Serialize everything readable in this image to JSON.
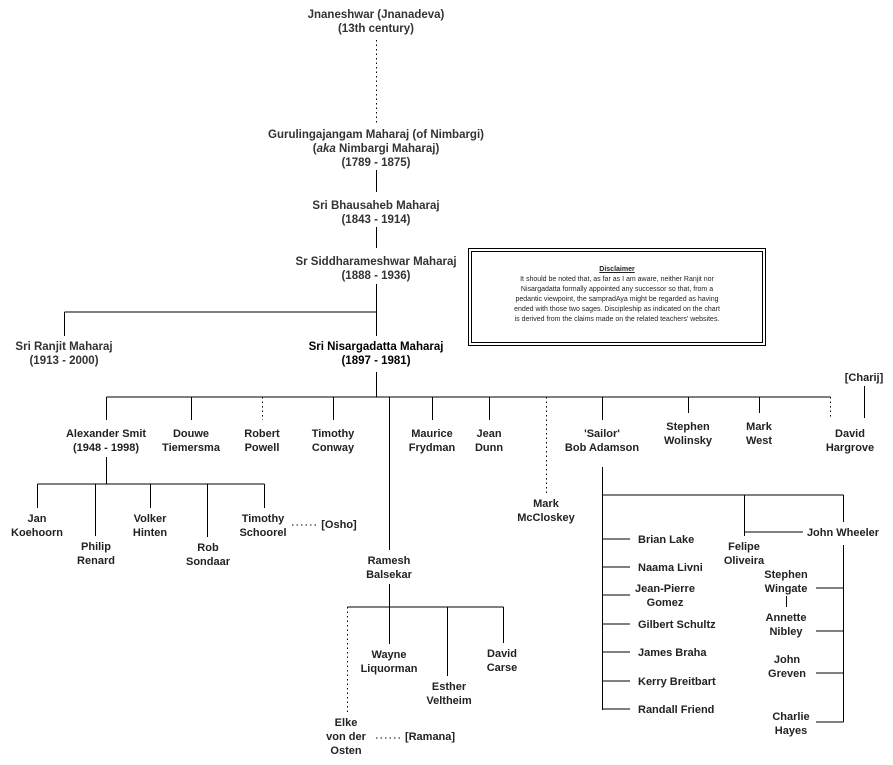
{
  "lineage": {
    "jnaneshwar": [
      "Jnaneshwar (Jnanadeva)",
      "(13th century)"
    ],
    "gurulingajangam": {
      "line1": "Gurulingajangam Maharaj (of Nimbargi)",
      "aka_em": "aka",
      "aka_rest": " Nimbargi Maharaj)",
      "aka_open": "(",
      "dates": "(1789 - 1875)"
    },
    "bhausaheb": [
      "Sri Bhausaheb Maharaj",
      "(1843 - 1914)"
    ],
    "siddharameshwar": [
      "Sr Siddharameshwar Maharaj",
      "(1888 - 1936)"
    ],
    "ranjit": [
      "Sri Ranjit Maharaj",
      "(1913 - 2000)"
    ],
    "nisargadatta": [
      "Sri Nisargadatta Maharaj",
      "(1897 - 1981)"
    ]
  },
  "disclaimer": {
    "title": "Disclaimer",
    "lines": [
      "It should be noted that, as far as I am aware, neither Ranjit nor",
      "Nisargadatta formally appointed any successor so that, from a",
      "pedantic viewpoint, the sampradAya might be regarded as having",
      "ended with those two sages. Discipleship as indicated on the chart",
      "is derived from the claims made on the related teachers' websites."
    ]
  },
  "nisargadatta_disciples": {
    "smit": [
      "Alexander Smit",
      "(1948 - 1998)"
    ],
    "tiemersma": [
      "Douwe",
      "Tiemersma"
    ],
    "powell": [
      "Robert",
      "Powell"
    ],
    "conway": [
      "Timothy",
      "Conway"
    ],
    "balsekar": [
      "Ramesh",
      "Balsekar"
    ],
    "frydman": [
      "Maurice",
      "Frydman"
    ],
    "dunn": [
      "Jean",
      "Dunn"
    ],
    "mccloskey": [
      "Mark",
      "McCloskey"
    ],
    "adamson": [
      "'Sailor'",
      "Bob Adamson"
    ],
    "wolinsky": [
      "Stephen",
      "Wolinsky"
    ],
    "west": [
      "Mark",
      "West"
    ],
    "hargrove": [
      "David",
      "Hargrove"
    ]
  },
  "charij": "[Charij]",
  "smit_disciples": {
    "koehoorn": [
      "Jan",
      "Koehoorn"
    ],
    "renard": [
      "Philip",
      "Renard"
    ],
    "hinten": [
      "Volker",
      "Hinten"
    ],
    "sondaar": [
      "Rob",
      "Sondaar"
    ],
    "schoorel": [
      "Timothy",
      "Schoorel"
    ]
  },
  "osho": "[Osho]",
  "balsekar_disciples": {
    "liquorman": [
      "Wayne",
      "Liquorman"
    ],
    "carse": [
      "David",
      "Carse"
    ],
    "veltheim": [
      "Esther",
      "Veltheim"
    ],
    "vonderosten": [
      "Elke",
      "von der",
      "Osten"
    ]
  },
  "ramana": "[Ramana]",
  "adamson_disciples": {
    "lake": "Brian Lake",
    "livni": "Naama Livni",
    "gomez": [
      "Jean-Pierre",
      "Gomez"
    ],
    "schultz": "Gilbert Schultz",
    "braha": "James Braha",
    "breitbart": "Kerry Breitbart",
    "friend": "Randall Friend",
    "oliveira": [
      "Felipe",
      "Oliveira"
    ],
    "wheeler": "John Wheeler",
    "wingate": [
      "Stephen",
      "Wingate"
    ],
    "nibley": [
      "Annette",
      "Nibley"
    ],
    "greven": [
      "John",
      "Greven"
    ],
    "hayes": [
      "Charlie",
      "Hayes"
    ]
  }
}
